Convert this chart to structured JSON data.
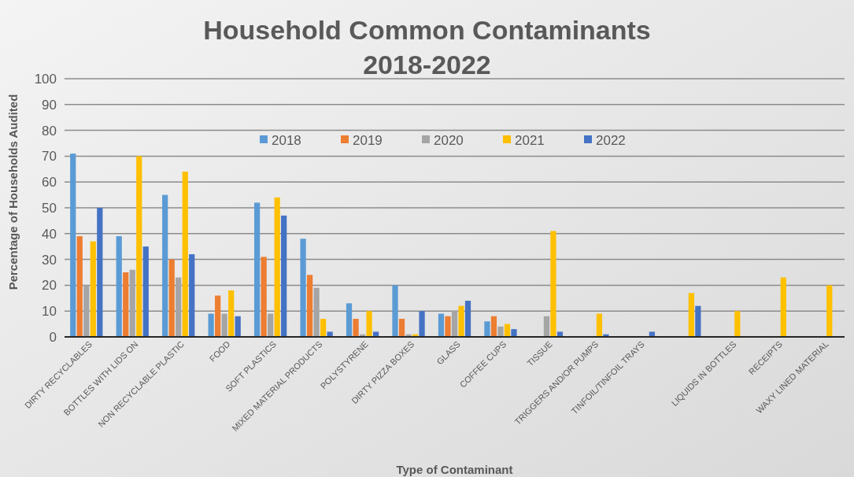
{
  "chart_data": {
    "type": "bar",
    "title": "Household Common Contaminants\n2018-2022",
    "xlabel": "Type of Contaminant",
    "ylabel": "Percentage of Households Audited",
    "categories": [
      "DIRTY RECYCLABLES",
      "BOTTLES WITH LIDS ON",
      "NON RECYCLABLE PLASTIC",
      "FOOD",
      "SOFT PLASTICS",
      "MIXED MATERIAL PRODUCTS",
      "POLYSTYRENE",
      "DIRTY PIZZA BOXES",
      "GLASS",
      "COFFEE CUPS",
      "TISSUE",
      "TRIGGERS AND/OR PUMPS",
      "TINFOIL/TINFOIL TRAYS",
      null,
      "LIQUIDS IN BOTTLES",
      "RECEIPTS",
      "WAXY LINED MATERIAL"
    ],
    "series": [
      {
        "name": "2018",
        "color": "#5b9bd5",
        "values": [
          71,
          39,
          55,
          9,
          52,
          38,
          13,
          20,
          9,
          6,
          null,
          null,
          null,
          null,
          null,
          null,
          null
        ]
      },
      {
        "name": "2019",
        "color": "#ed7d31",
        "values": [
          39,
          25,
          30,
          16,
          31,
          24,
          7,
          7,
          8,
          8,
          null,
          null,
          null,
          null,
          null,
          null,
          null
        ]
      },
      {
        "name": "2020",
        "color": "#a5a5a5",
        "values": [
          20,
          26,
          23,
          9,
          9,
          19,
          1,
          1,
          10,
          4,
          8,
          null,
          null,
          null,
          null,
          null,
          null
        ]
      },
      {
        "name": "2021",
        "color": "#ffc000",
        "values": [
          37,
          70,
          64,
          18,
          54,
          7,
          10,
          1,
          12,
          5,
          41,
          9,
          null,
          17,
          10,
          23,
          20
        ]
      },
      {
        "name": "2022",
        "color": "#4472c4",
        "values": [
          50,
          35,
          32,
          8,
          47,
          2,
          2,
          10,
          14,
          3,
          2,
          1,
          2,
          12,
          null,
          null,
          null
        ]
      }
    ],
    "ylim": [
      0,
      100
    ],
    "yticks": [
      0,
      10,
      20,
      30,
      40,
      50,
      60,
      70,
      80,
      90,
      100
    ],
    "grid": "y",
    "legend": "top"
  }
}
